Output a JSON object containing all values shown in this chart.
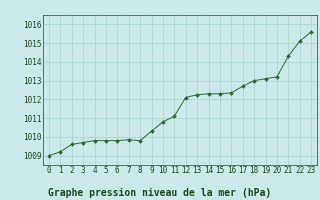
{
  "title": "Graphe pression niveau de la mer (hPa)",
  "x_values": [
    0,
    1,
    2,
    3,
    4,
    5,
    6,
    7,
    8,
    9,
    10,
    11,
    12,
    13,
    14,
    15,
    16,
    17,
    18,
    19,
    20,
    21,
    22,
    23
  ],
  "y_values": [
    1009.0,
    1009.2,
    1009.6,
    1009.7,
    1009.8,
    1009.8,
    1009.8,
    1009.85,
    1009.8,
    1010.3,
    1010.8,
    1011.1,
    1012.1,
    1012.25,
    1012.3,
    1012.3,
    1012.35,
    1012.7,
    1013.0,
    1013.1,
    1013.2,
    1014.3,
    1015.1,
    1015.6
  ],
  "ylim": [
    1008.5,
    1016.5
  ],
  "xlim": [
    -0.5,
    23.5
  ],
  "yticks": [
    1009,
    1010,
    1011,
    1012,
    1013,
    1014,
    1015,
    1016
  ],
  "xticks": [
    0,
    1,
    2,
    3,
    4,
    5,
    6,
    7,
    8,
    9,
    10,
    11,
    12,
    13,
    14,
    15,
    16,
    17,
    18,
    19,
    20,
    21,
    22,
    23
  ],
  "line_color": "#2d6a2d",
  "marker_color": "#2d6a2d",
  "bg_color": "#cce8e8",
  "grid_color": "#a8d0d0",
  "title_color": "#1a4a1a",
  "tick_label_color": "#1a4a1a",
  "title_fontsize": 7.0,
  "tick_fontsize": 5.5
}
